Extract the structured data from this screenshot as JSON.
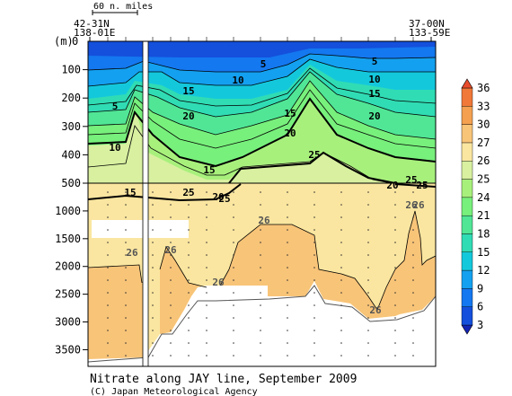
{
  "chart_data": {
    "type": "section contour plot",
    "title": "Nitrate along JAY line, September 2009",
    "credit": "(C) Japan Meteorological Agency",
    "scale_bar_label": "60 n. miles",
    "ylabel": "(m)",
    "left_position": {
      "lat": "42-31N",
      "lon": "138-01E"
    },
    "right_position": {
      "lat": "37-00N",
      "lon": "133-59E"
    },
    "y_axis": {
      "upper_panel_range_m": [
        0,
        500
      ],
      "lower_panel_range_m": [
        500,
        3800
      ],
      "upper_ticks": [
        "100",
        "200",
        "300",
        "400",
        "500"
      ],
      "lower_ticks": [
        "1000",
        "1500",
        "2000",
        "2500",
        "3000",
        "3500"
      ]
    },
    "colorbar": {
      "levels": [
        3,
        6,
        9,
        12,
        15,
        18,
        21,
        24,
        25,
        26,
        27,
        30,
        33,
        36
      ],
      "tick_labels": [
        "3",
        "6",
        "9",
        "12",
        "15",
        "18",
        "21",
        "24",
        "25",
        "26",
        "27",
        "30",
        "33",
        "36"
      ],
      "colors": [
        "#1424b4",
        "#1450dc",
        "#1478f0",
        "#14a0f0",
        "#14c8dc",
        "#30dcb4",
        "#50e696",
        "#78f07c",
        "#a8f07c",
        "#d8f0a0",
        "#fae6a0",
        "#f8c478",
        "#f4a050",
        "#f07838",
        "#e84c2c"
      ]
    },
    "contour_labels_upper": [
      "5",
      "10",
      "15",
      "20",
      "5",
      "10",
      "15",
      "20",
      "15",
      "20",
      "25",
      "5",
      "10",
      "15",
      "20",
      "25",
      "15",
      "20",
      "25",
      "25",
      "25"
    ],
    "contour_labels_lower": [
      "26",
      "26",
      "26",
      "26",
      "26",
      "26",
      "26"
    ]
  }
}
